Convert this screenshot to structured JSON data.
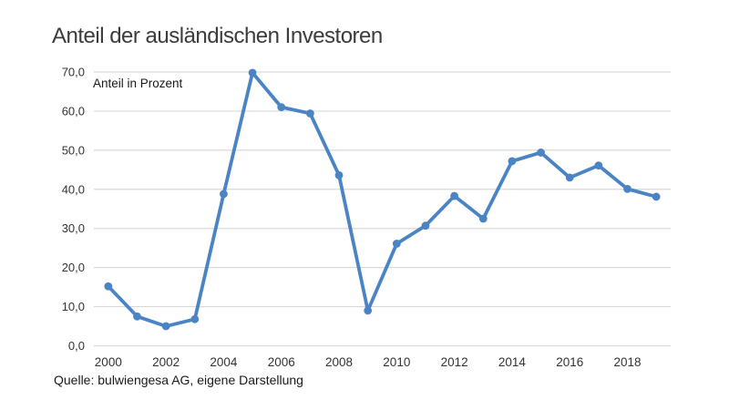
{
  "page": {
    "background_color": "#ffffff"
  },
  "chart": {
    "title": "Anteil der ausländischen Investoren",
    "axis_title": "Anteil in Prozent",
    "source": "Quelle: bulwiengesa AG, eigene Darstellung"
  },
  "chart_data": {
    "type": "line",
    "title": "Anteil der ausländischen Investoren",
    "xlabel": "",
    "ylabel": "Anteil in Prozent",
    "categories": [
      2000,
      2001,
      2002,
      2003,
      2004,
      2005,
      2006,
      2007,
      2008,
      2009,
      2010,
      2011,
      2012,
      2013,
      2014,
      2015,
      2016,
      2017,
      2018,
      2019
    ],
    "values": [
      15.2,
      7.5,
      5.0,
      6.8,
      38.8,
      69.8,
      61.0,
      59.4,
      43.6,
      9.0,
      26.1,
      30.7,
      38.3,
      32.5,
      47.2,
      49.4,
      43.0,
      46.1,
      40.1,
      38.1
    ],
    "ylim": [
      0,
      70
    ],
    "y_tick_step": 10,
    "y_tick_labels": [
      "0,0",
      "10,0",
      "20,0",
      "30,0",
      "40,0",
      "50,0",
      "60,0",
      "70,0"
    ],
    "x_tick_labels": [
      "2000",
      "2002",
      "2004",
      "2006",
      "2008",
      "2010",
      "2012",
      "2014",
      "2016",
      "2018"
    ],
    "grid": "horizontal",
    "legend_position": "none",
    "line_color": "#4a84c4",
    "marker": "circle",
    "grid_color": "#d9d9d9",
    "tick_color": "#333333",
    "source": "Quelle: bulwiengesa AG, eigene Darstellung"
  }
}
